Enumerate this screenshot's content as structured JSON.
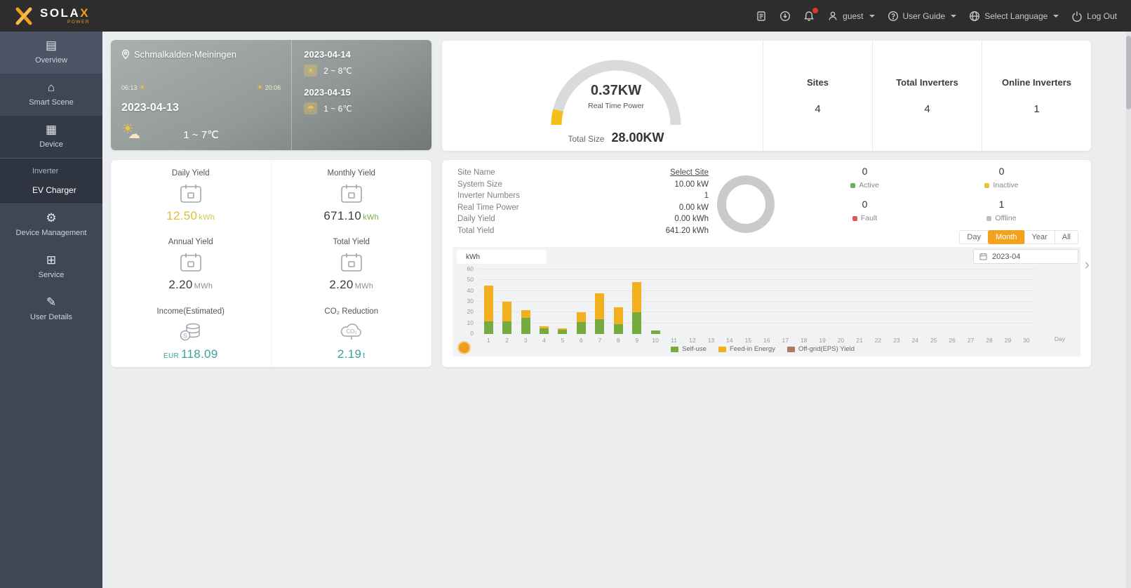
{
  "navbar": {
    "brand": {
      "text": "SOLA",
      "x": "X",
      "tagline": "POWER",
      "accent_color": "#f0a01e"
    },
    "icons": [
      "document-icon",
      "download-icon",
      "bell-icon"
    ],
    "user": "guest",
    "user_guide": "User Guide",
    "language": "Select Language",
    "logout": "Log Out"
  },
  "sidebar": {
    "items": [
      {
        "label": "Overview",
        "icon": "overview",
        "type": "item",
        "state": "active"
      },
      {
        "label": "Smart Scene",
        "icon": "smart-scene",
        "type": "item"
      },
      {
        "label": "Device",
        "icon": "device",
        "type": "item",
        "state": "expanded"
      },
      {
        "label": "Inverter",
        "type": "subitem"
      },
      {
        "label": "EV Charger",
        "type": "subitem",
        "state": "highlight"
      },
      {
        "label": "Device Management",
        "icon": "device-management",
        "type": "item"
      },
      {
        "label": "Service",
        "icon": "service",
        "type": "item"
      },
      {
        "label": "User Details",
        "icon": "user-details",
        "type": "item"
      }
    ]
  },
  "weather": {
    "location": "Schmalkalden-Meiningen",
    "today": {
      "date": "2023-04-13",
      "temp": "1 ~ 7℃",
      "sunrise": "06:13",
      "sunset": "20:06"
    },
    "forecast": [
      {
        "date": "2023-04-14",
        "temp": "2 ~ 8℃",
        "icon": "sun"
      },
      {
        "date": "2023-04-15",
        "temp": "1 ~ 6℃",
        "icon": "rain"
      }
    ]
  },
  "summary": {
    "real_time_power": "0.37KW",
    "real_time_power_label": "Real Time Power",
    "total_size_label": "Total Size",
    "total_size": "28.00KW",
    "gauge": {
      "track_color": "#d9dadb",
      "value_color": "#f2c018",
      "fraction": 0.08
    },
    "stats": [
      {
        "label": "Sites",
        "value": "4"
      },
      {
        "label": "Total Inverters",
        "value": "4"
      },
      {
        "label": "Online Inverters",
        "value": "1"
      }
    ]
  },
  "yields": [
    {
      "label": "Daily Yield",
      "icon": "calendar",
      "value": "12.50",
      "unit": "kWh",
      "value_color": "#ddbe35",
      "unit_color": "#cdc94a"
    },
    {
      "label": "Monthly Yield",
      "icon": "calendar",
      "value": "671.10",
      "unit": "kWh",
      "value_color": "#3d3d3d",
      "unit_color": "#74ad4d"
    },
    {
      "label": "Annual Yield",
      "icon": "calendar",
      "value": "2.20",
      "unit": "MWh",
      "value_color": "#3d3d3d",
      "unit_color": "#8d8d8d"
    },
    {
      "label": "Total Yield",
      "icon": "calendar",
      "value": "2.20",
      "unit": "MWh",
      "value_color": "#3d3d3d",
      "unit_color": "#8d8d8d"
    },
    {
      "label": "Income(Estimated)",
      "icon": "coins",
      "prefix": "EUR",
      "value": "118.09",
      "unit": "",
      "value_color": "#35a39d",
      "unit_color": "#35a39d"
    },
    {
      "label": "CO₂ Reduction",
      "icon": "co2",
      "value": "2.19",
      "unit": "t",
      "value_color": "#35a39d",
      "unit_color": "#35a39d"
    }
  ],
  "site_panel": {
    "rows": [
      {
        "label": "Site Name",
        "value": "Select Site",
        "link": true
      },
      {
        "label": "System Size",
        "value": "10.00 kW"
      },
      {
        "label": "Inverter Numbers",
        "value": "1"
      },
      {
        "label": "Real Time Power",
        "value": "0.00 kW"
      },
      {
        "label": "Daily Yield",
        "value": "0.00 kWh"
      },
      {
        "label": "Total Yield",
        "value": "641.20 kWh"
      }
    ],
    "statuses": [
      {
        "label": "Active",
        "value": "0",
        "color": "#67b15c"
      },
      {
        "label": "Inactive",
        "value": "0",
        "color": "#e7c53a"
      },
      {
        "label": "Fault",
        "value": "0",
        "color": "#d85b56"
      },
      {
        "label": "Offline",
        "value": "1",
        "color": "#bfbfbf"
      }
    ],
    "ranges": [
      "Day",
      "Month",
      "Year",
      "All"
    ],
    "active_range": "Month",
    "date": "2023-04"
  },
  "chart_data": {
    "type": "bar",
    "stacked": true,
    "unit": "kWh",
    "xlabel": "Day",
    "x": [
      1,
      2,
      3,
      4,
      5,
      6,
      7,
      8,
      9,
      10,
      11,
      12,
      13,
      14,
      15,
      16,
      17,
      18,
      19,
      20,
      21,
      22,
      23,
      24,
      25,
      26,
      27,
      28,
      29,
      30
    ],
    "yticks": [
      0,
      10,
      20,
      30,
      40,
      50,
      60
    ],
    "ylim": [
      0,
      60
    ],
    "grid": true,
    "legend_position": "bottom",
    "series": [
      {
        "name": "Self-use",
        "color": "#76ab3f",
        "values": [
          12,
          12,
          15,
          5,
          4,
          11,
          14,
          9,
          20,
          3,
          0,
          0,
          0,
          0,
          0,
          0,
          0,
          0,
          0,
          0,
          0,
          0,
          0,
          0,
          0,
          0,
          0,
          0,
          0,
          0
        ]
      },
      {
        "name": "Feed-in Energy",
        "color": "#f2b01e",
        "values": [
          33,
          18,
          7,
          2,
          1,
          9,
          24,
          16,
          28,
          0,
          0,
          0,
          0,
          0,
          0,
          0,
          0,
          0,
          0,
          0,
          0,
          0,
          0,
          0,
          0,
          0,
          0,
          0,
          0,
          0
        ]
      },
      {
        "name": "Off-grid(EPS) Yield",
        "color": "#ad7a5f",
        "values": [
          0,
          0,
          0,
          0,
          0,
          0,
          0,
          0,
          0,
          0,
          0,
          0,
          0,
          0,
          0,
          0,
          0,
          0,
          0,
          0,
          0,
          0,
          0,
          0,
          0,
          0,
          0,
          0,
          0,
          0
        ]
      }
    ]
  }
}
